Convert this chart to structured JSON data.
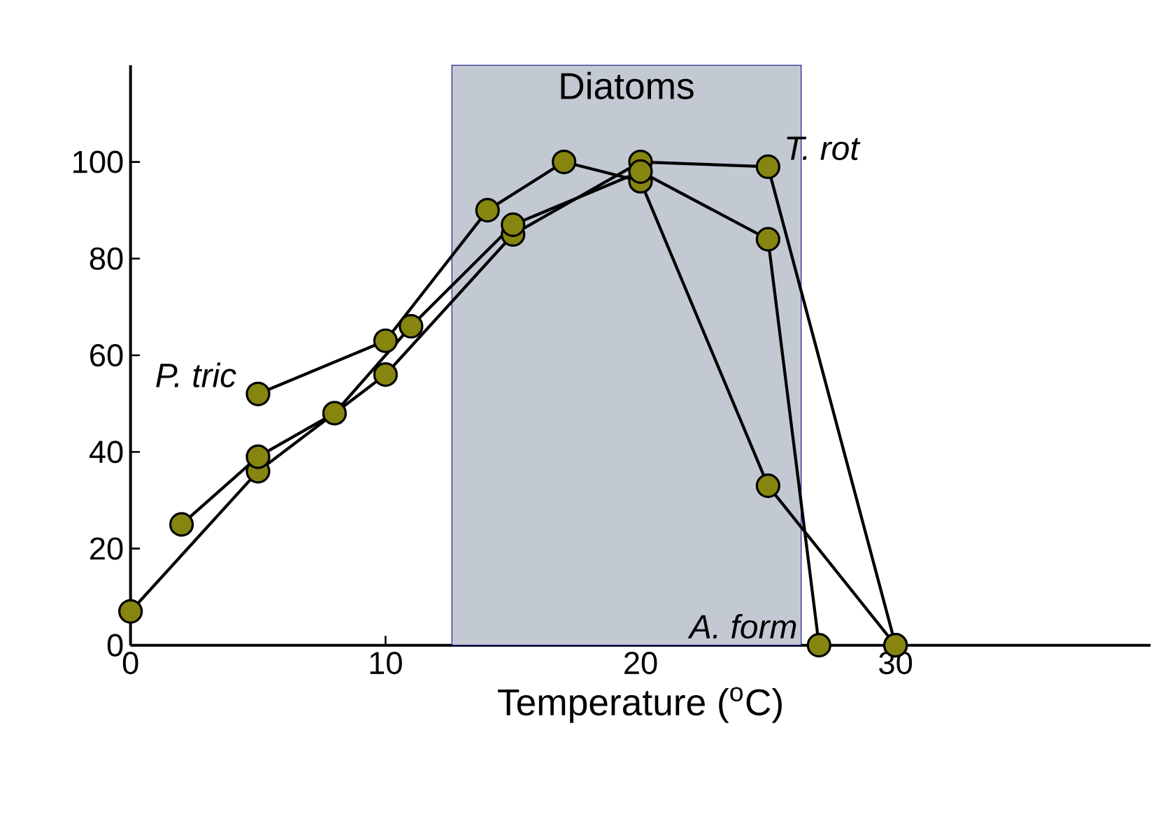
{
  "chart_data": {
    "type": "line",
    "xlabel": "Temperature ($^{o}$C)",
    "xlim": [
      0,
      40
    ],
    "ylim": [
      0,
      120
    ],
    "xticks": [
      0,
      10,
      20,
      30
    ],
    "yticks": [
      0,
      20,
      40,
      60,
      80,
      100
    ],
    "marker": "circle",
    "line_style": "solid",
    "grid": false,
    "series": [
      {
        "name": "P. tric",
        "color": "#858510",
        "x": [
          5,
          10,
          14,
          17,
          20,
          25,
          30
        ],
        "values": [
          52,
          63,
          90,
          100,
          96,
          33,
          0
        ]
      },
      {
        "name": "T. rot",
        "color": "#858510",
        "x": [
          0,
          5,
          10,
          15,
          20,
          25,
          30
        ],
        "values": [
          7,
          36,
          56,
          85,
          100,
          99,
          0
        ]
      },
      {
        "name": "A. form",
        "color": "#858510",
        "x": [
          2,
          5,
          8,
          11,
          15,
          20,
          25,
          27
        ],
        "values": [
          25,
          39,
          48,
          66,
          87,
          98,
          84,
          0
        ]
      }
    ],
    "bands": [
      {
        "axis": "x",
        "from": 12.6,
        "to": 26.3,
        "label": "Diatoms",
        "color": "#c3c9d3"
      }
    ]
  }
}
